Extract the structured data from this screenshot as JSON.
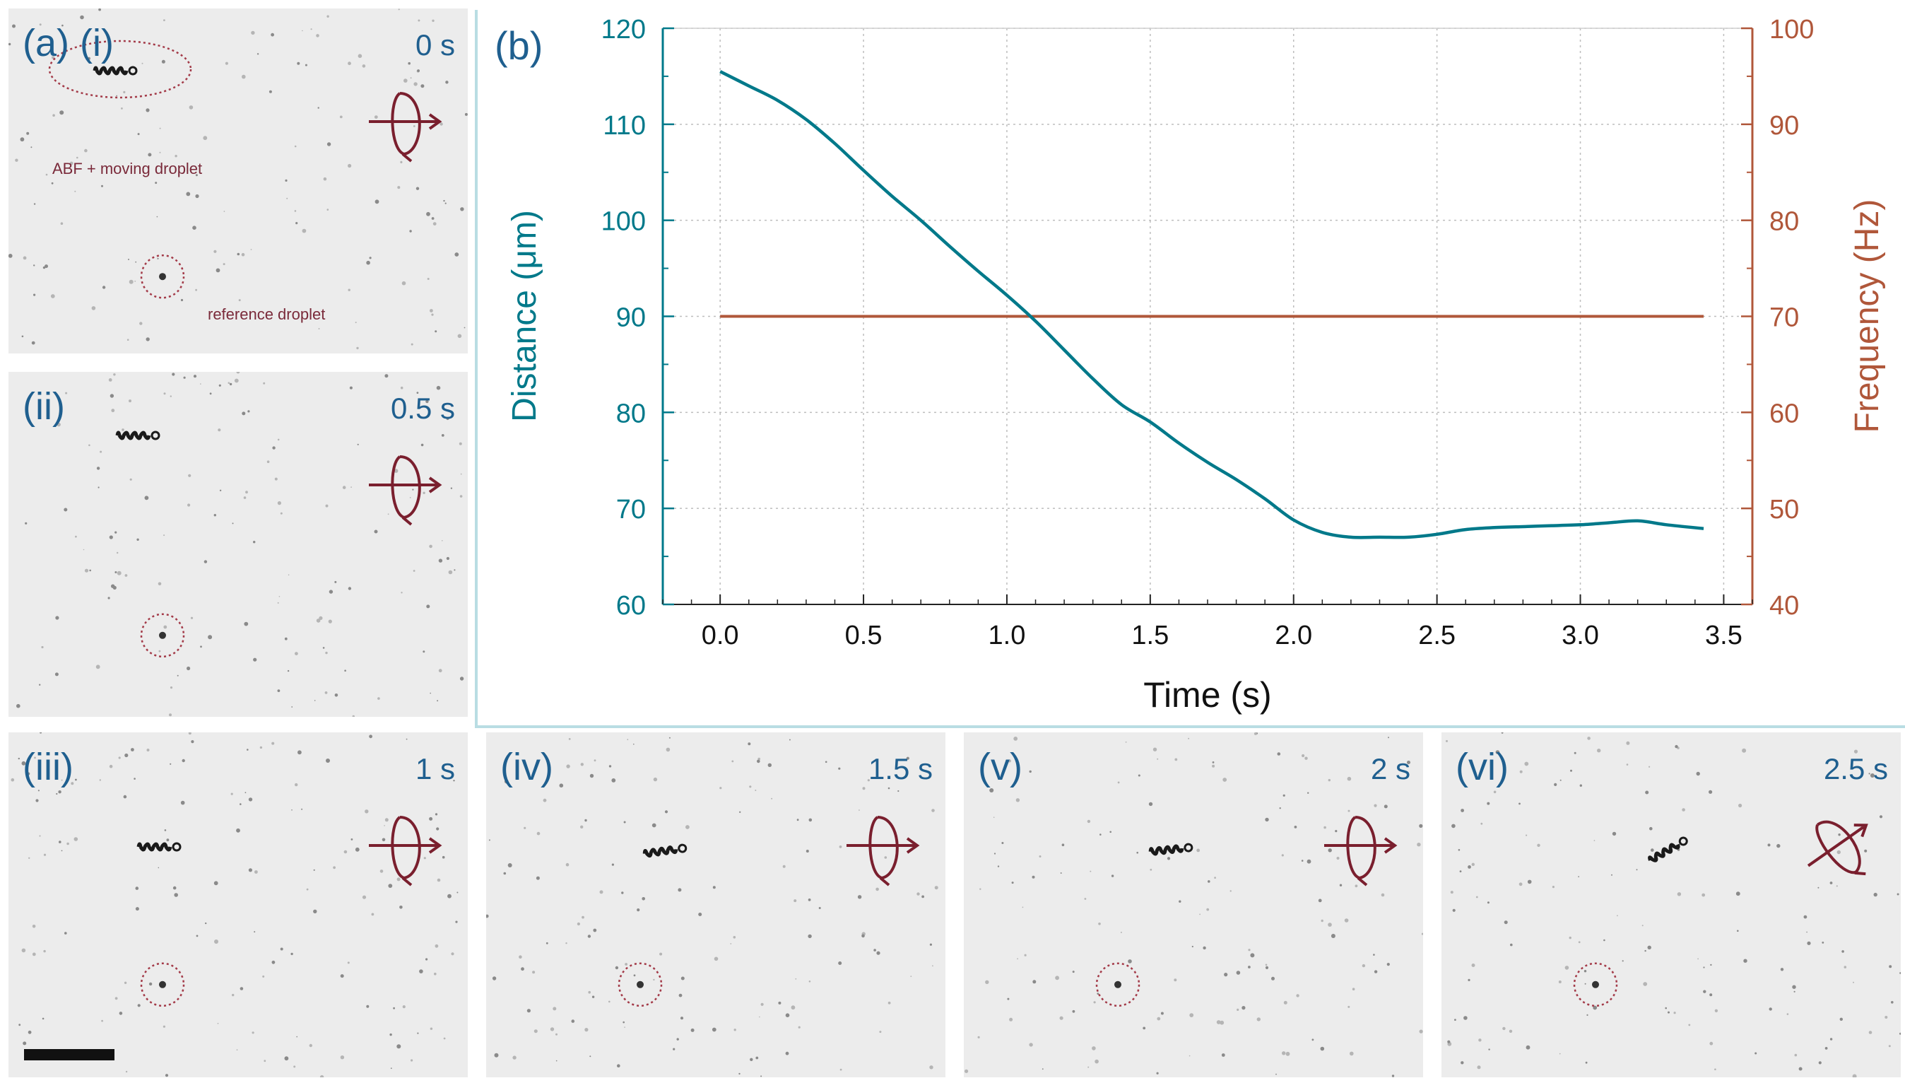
{
  "panels": [
    {
      "id": "i",
      "label": "(a) (i)",
      "time": "0 s",
      "abf_text": "ABF + moving droplet",
      "ref_text": "reference droplet"
    },
    {
      "id": "ii",
      "label": "(ii)",
      "time": "0.5 s"
    },
    {
      "id": "iii",
      "label": "(iii)",
      "time": "1 s"
    },
    {
      "id": "iv",
      "label": "(iv)",
      "time": "1.5 s"
    },
    {
      "id": "v",
      "label": "(v)",
      "time": "2 s"
    },
    {
      "id": "vi",
      "label": "(vi)",
      "time": "2.5 s"
    }
  ],
  "colors": {
    "distance": "#00798a",
    "frequency": "#b0573a",
    "label_blue": "#1f5f8f",
    "annotation": "#7a2a3a"
  },
  "chart_data": {
    "type": "line",
    "panel_label": "(b)",
    "xlabel": "Time (s)",
    "ylabel_left": "Distance (μm)",
    "ylabel_right": "Frequency (Hz)",
    "xlim": [
      -0.2,
      3.6
    ],
    "ylim_left": [
      60,
      120
    ],
    "ylim_right": [
      40,
      100
    ],
    "xticks": [
      "0.0",
      "0.5",
      "1.0",
      "1.5",
      "2.0",
      "2.5",
      "3.0",
      "3.5"
    ],
    "xtick_values": [
      0,
      0.5,
      1.0,
      1.5,
      2.0,
      2.5,
      3.0,
      3.5
    ],
    "yticks_left": [
      "60",
      "70",
      "80",
      "90",
      "100",
      "110",
      "120"
    ],
    "ytick_left_values": [
      60,
      70,
      80,
      90,
      100,
      110,
      120
    ],
    "yticks_right": [
      "40",
      "50",
      "60",
      "70",
      "80",
      "90",
      "100"
    ],
    "ytick_right_values": [
      40,
      50,
      60,
      70,
      80,
      90,
      100
    ],
    "grid": true,
    "series": [
      {
        "name": "Distance",
        "axis": "left",
        "x": [
          0.0,
          0.1,
          0.2,
          0.3,
          0.4,
          0.5,
          0.6,
          0.7,
          0.8,
          0.9,
          1.0,
          1.1,
          1.2,
          1.3,
          1.4,
          1.5,
          1.6,
          1.7,
          1.8,
          1.9,
          2.0,
          2.1,
          2.2,
          2.3,
          2.4,
          2.5,
          2.6,
          2.7,
          2.8,
          2.9,
          3.0,
          3.1,
          3.2,
          3.3,
          3.43
        ],
        "y": [
          115.5,
          114.0,
          112.5,
          110.5,
          108.0,
          105.2,
          102.5,
          100.0,
          97.3,
          94.7,
          92.2,
          89.5,
          86.5,
          83.5,
          80.8,
          79.0,
          76.8,
          74.8,
          73.0,
          71.0,
          68.8,
          67.5,
          67.0,
          67.0,
          67.0,
          67.3,
          67.8,
          68.0,
          68.1,
          68.2,
          68.3,
          68.5,
          68.7,
          68.3,
          67.9
        ]
      },
      {
        "name": "Frequency",
        "axis": "right",
        "x": [
          0.0,
          3.43
        ],
        "y": [
          70,
          70
        ]
      }
    ]
  }
}
